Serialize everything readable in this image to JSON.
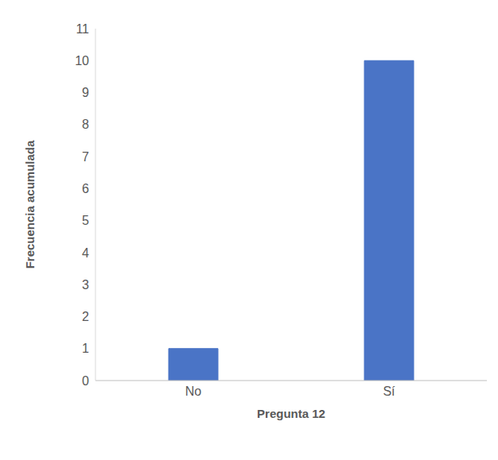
{
  "chart_data": {
    "type": "bar",
    "categories": [
      "No",
      "Sí"
    ],
    "values": [
      1,
      10
    ],
    "color": "#4a74c6",
    "x_label": "Pregunta 12",
    "y_label": "Frecuencia acumulada",
    "ylim": [
      0,
      11
    ],
    "yticks": [
      0,
      1,
      2,
      3,
      4,
      5,
      6,
      7,
      8,
      9,
      10,
      11
    ],
    "grid": false
  }
}
